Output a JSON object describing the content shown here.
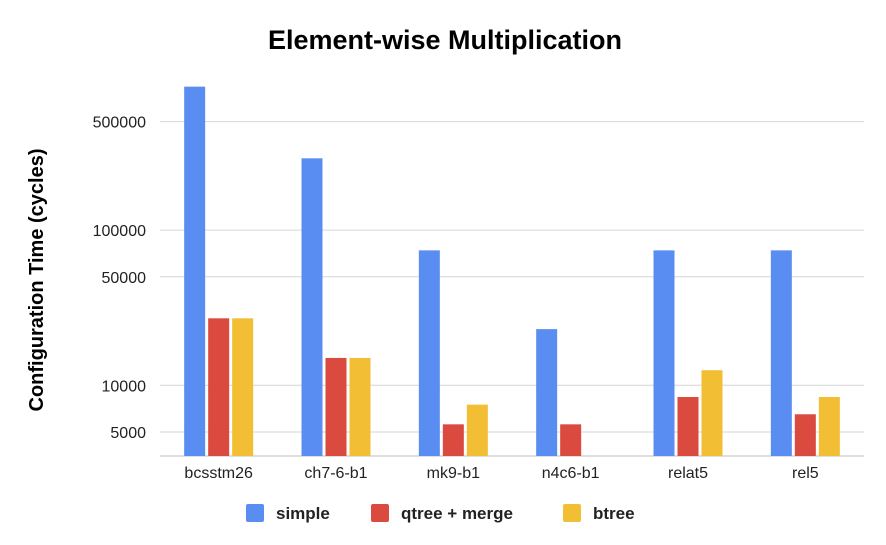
{
  "chart_data": {
    "type": "bar",
    "title": "Element-wise Multiplication",
    "xlabel": "",
    "ylabel": "Configuration Time (cycles)",
    "yscale": "log",
    "ylim": [
      3500,
      900000
    ],
    "yticks": [
      5000,
      10000,
      50000,
      100000,
      500000
    ],
    "ytick_labels": [
      "5000",
      "10000",
      "50000",
      "100000",
      "500000"
    ],
    "grid": true,
    "legend_position": "bottom",
    "categories": [
      "bcsstm26",
      "ch7-6-b1",
      "mk9-b1",
      "n4c6-b1",
      "relat5",
      "rel5"
    ],
    "series": [
      {
        "name": "simple",
        "color": "#5a8df1",
        "values": [
          840000,
          290000,
          74000,
          23000,
          74000,
          74000
        ]
      },
      {
        "name": "qtree + merge",
        "color": "#db4a3f",
        "values": [
          27000,
          15000,
          5600,
          5600,
          8400,
          6500
        ]
      },
      {
        "name": "btree",
        "color": "#f2be34",
        "values": [
          27000,
          15000,
          7500,
          null,
          12500,
          8400
        ]
      }
    ]
  }
}
